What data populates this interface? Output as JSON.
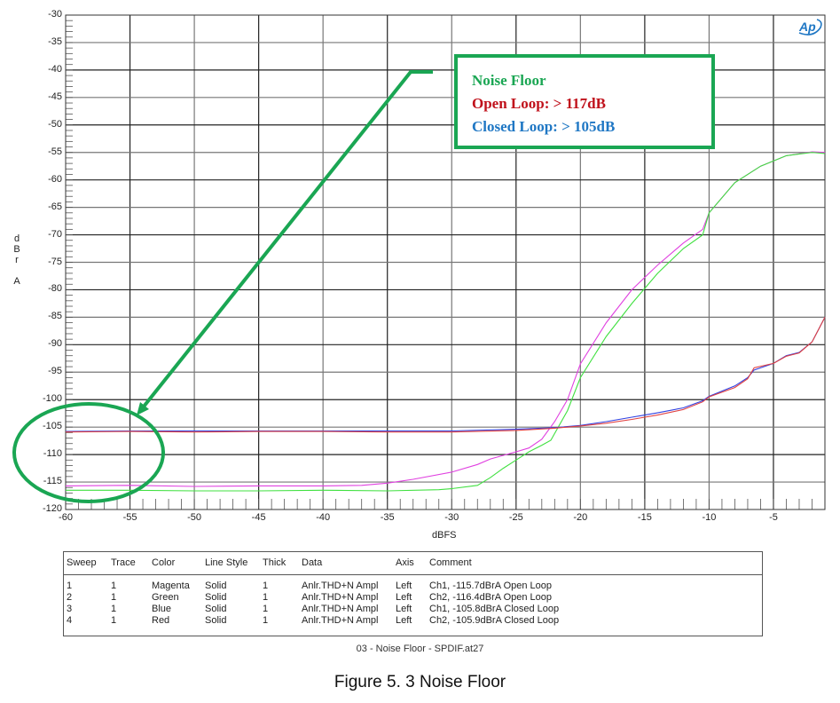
{
  "chart_data": {
    "type": "line",
    "title": "Noise Floor",
    "xlabel": "dBFS",
    "ylabel": "dBr A",
    "xlim": [
      -60,
      -1
    ],
    "ylim": [
      -120,
      -30
    ],
    "grid": true,
    "x_ticks": [
      -60,
      -55,
      -50,
      -45,
      -40,
      -35,
      -30,
      -25,
      -20,
      -15,
      -10,
      -5
    ],
    "y_ticks": [
      -30,
      -35,
      -40,
      -45,
      -50,
      -55,
      -60,
      -65,
      -70,
      -75,
      -80,
      -85,
      -90,
      -95,
      -100,
      -105,
      -110,
      -115,
      -120
    ],
    "legend_position": "table-below",
    "series": [
      {
        "name": "Magenta",
        "sweep": 1,
        "color": "#e040e0",
        "comment": "Ch1, -115.7dBrA Open Loop",
        "x": [
          -60,
          -55,
          -50,
          -45,
          -40,
          -37,
          -35,
          -33,
          -30,
          -28,
          -27,
          -25,
          -24,
          -23,
          -22,
          -21,
          -20,
          -18,
          -16,
          -14,
          -12,
          -10.5,
          -10,
          -8,
          -6,
          -4,
          -2,
          -1
        ],
        "y": [
          -115.7,
          -115.6,
          -115.8,
          -115.7,
          -115.7,
          -115.6,
          -115.2,
          -114.5,
          -113.2,
          -111.8,
          -110.8,
          -109.5,
          -108.8,
          -107.2,
          -104,
          -100,
          -93.5,
          -86,
          -80,
          -75.5,
          -71.5,
          -69,
          -66,
          -60.5,
          -57.5,
          -55.6,
          -54.9,
          -55
        ]
      },
      {
        "name": "Green",
        "sweep": 2,
        "color": "#40e040",
        "comment": "Ch2, -116.4dBrA Open Loop",
        "x": [
          -60,
          -55,
          -50,
          -45,
          -40,
          -35,
          -31,
          -30,
          -28,
          -27,
          -26,
          -25,
          -24,
          -23,
          -22.3,
          -21,
          -20,
          -18,
          -16,
          -14,
          -12,
          -10.5,
          -10,
          -8,
          -6,
          -4,
          -2,
          -1
        ],
        "y": [
          -116.5,
          -116.5,
          -116.6,
          -116.6,
          -116.5,
          -116.6,
          -116.4,
          -116.2,
          -115.6,
          -114.2,
          -112.5,
          -111,
          -109.5,
          -108.3,
          -107.4,
          -102,
          -96,
          -88.5,
          -82.5,
          -77,
          -72.5,
          -70,
          -66,
          -60.5,
          -57.5,
          -55.6,
          -55,
          -55.2
        ]
      },
      {
        "name": "Blue",
        "sweep": 3,
        "color": "#3040e0",
        "comment": "Ch1, -105.8dBrA Closed Loop",
        "x": [
          -60,
          -55,
          -50,
          -45,
          -40,
          -35,
          -30,
          -25,
          -22,
          -20,
          -18,
          -16,
          -15,
          -14,
          -12,
          -10.5,
          -10,
          -8,
          -7,
          -6.5,
          -5,
          -4,
          -3,
          -2,
          -1
        ],
        "y": [
          -105.8,
          -105.7,
          -105.7,
          -105.7,
          -105.7,
          -105.7,
          -105.7,
          -105.4,
          -105.1,
          -104.7,
          -104,
          -103.2,
          -102.8,
          -102.4,
          -101.5,
          -100.2,
          -99.4,
          -97.5,
          -96,
          -94.6,
          -93.4,
          -92,
          -91.4,
          -89.5,
          -85
        ]
      },
      {
        "name": "Red",
        "sweep": 4,
        "color": "#e04040",
        "comment": "Ch2, -105.9dBrA Closed Loop",
        "x": [
          -60,
          -55,
          -50,
          -45,
          -40,
          -35,
          -30,
          -25,
          -22,
          -20,
          -18,
          -16,
          -15,
          -14,
          -12,
          -10.5,
          -10,
          -8,
          -7,
          -6.5,
          -5,
          -4,
          -3,
          -2,
          -1
        ],
        "y": [
          -105.9,
          -105.8,
          -105.9,
          -105.8,
          -105.8,
          -105.9,
          -105.9,
          -105.6,
          -105.2,
          -104.8,
          -104.3,
          -103.6,
          -103.2,
          -102.8,
          -101.8,
          -100.4,
          -99.5,
          -97.8,
          -96.2,
          -94.2,
          -93.4,
          -92.1,
          -91.5,
          -89.5,
          -85
        ]
      }
    ],
    "annotations": [
      {
        "type": "callout-box",
        "lines": [
          "Noise Floor",
          "Open Loop:  > 117dB",
          "Closed Loop:  > 105dB"
        ]
      },
      {
        "type": "arrow",
        "from": "callout-box",
        "to_region": "noise floor near -60 dBFS"
      },
      {
        "type": "ellipse",
        "region": "x -60..-53, y -104..-119"
      }
    ]
  },
  "axis": {
    "ylabel_chars": [
      "d",
      "B",
      "r",
      "",
      "A"
    ],
    "xlabel": "dBFS",
    "x_ticks": [
      "-60",
      "-55",
      "-50",
      "-45",
      "-40",
      "-35",
      "-30",
      "-25",
      "-20",
      "-15",
      "-10",
      "-5"
    ],
    "y_ticks": [
      "-30",
      "-35",
      "-40",
      "-45",
      "-50",
      "-55",
      "-60",
      "-65",
      "-70",
      "-75",
      "-80",
      "-85",
      "-90",
      "-95",
      "-100",
      "-105",
      "-110",
      "-115",
      "-120"
    ]
  },
  "annotation_box": {
    "title": "Noise Floor",
    "open_loop": "Open Loop:  > 117dB",
    "closed_loop": "Closed Loop:  > 105dB",
    "colors": {
      "title": "#1aa653",
      "open": "#c0111b",
      "closed": "#1f77c4",
      "border": "#1aa653"
    }
  },
  "logo": {
    "text": "Ap",
    "color": "#1f77c4"
  },
  "legend_table": {
    "headers": {
      "sweep": "Sweep",
      "trace": "Trace",
      "color": "Color",
      "style": "Line Style",
      "thick": "Thick",
      "data": "Data",
      "axis": "Axis",
      "comment": "Comment"
    },
    "rows": [
      {
        "sweep": "1",
        "trace": "1",
        "color": "Magenta",
        "style": "Solid",
        "thick": "1",
        "data": "Anlr.THD+N Ampl",
        "axis": "Left",
        "comment": "Ch1, -115.7dBrA Open Loop"
      },
      {
        "sweep": "2",
        "trace": "1",
        "color": "Green",
        "style": "Solid",
        "thick": "1",
        "data": "Anlr.THD+N Ampl",
        "axis": "Left",
        "comment": "Ch2, -116.4dBrA Open Loop"
      },
      {
        "sweep": "3",
        "trace": "1",
        "color": "Blue",
        "style": "Solid",
        "thick": "1",
        "data": "Anlr.THD+N Ampl",
        "axis": "Left",
        "comment": "Ch1, -105.8dBrA Closed Loop"
      },
      {
        "sweep": "4",
        "trace": "1",
        "color": "Red",
        "style": "Solid",
        "thick": "1",
        "data": "Anlr.THD+N Ampl",
        "axis": "Left",
        "comment": "Ch2, -105.9dBrA Closed Loop"
      }
    ]
  },
  "file_caption": "03 - Noise Floor - SPDIF.at27",
  "figure_caption": "Figure 5. 3 Noise Floor"
}
